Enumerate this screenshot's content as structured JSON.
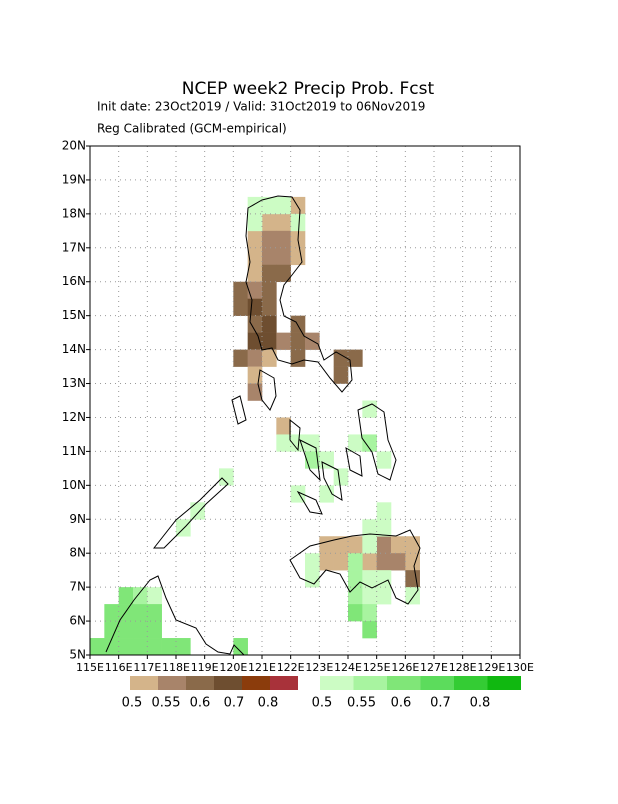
{
  "chart_data": {
    "type": "map",
    "title": "NCEP week2 Precip Prob. Fcst",
    "subtitle": "Init date: 23Oct2019 / Valid: 31Oct2019 to 06Nov2019",
    "note": "Reg Calibrated (GCM-empirical)",
    "xlim": [
      115,
      130
    ],
    "ylim": [
      5,
      20
    ],
    "grid": true,
    "xticks": [
      {
        "value": 115,
        "label": "115E"
      },
      {
        "value": 116,
        "label": "116E"
      },
      {
        "value": 117,
        "label": "117E"
      },
      {
        "value": 118,
        "label": "118E"
      },
      {
        "value": 119,
        "label": "119E"
      },
      {
        "value": 120,
        "label": "120E"
      },
      {
        "value": 121,
        "label": "121E"
      },
      {
        "value": 122,
        "label": "122E"
      },
      {
        "value": 123,
        "label": "123E"
      },
      {
        "value": 124,
        "label": "124E"
      },
      {
        "value": 125,
        "label": "125E"
      },
      {
        "value": 126,
        "label": "126E"
      },
      {
        "value": 127,
        "label": "127E"
      },
      {
        "value": 128,
        "label": "128E"
      },
      {
        "value": 129,
        "label": "129E"
      },
      {
        "value": 130,
        "label": "130E"
      }
    ],
    "yticks": [
      {
        "value": 5,
        "label": "5N"
      },
      {
        "value": 6,
        "label": "6N"
      },
      {
        "value": 7,
        "label": "7N"
      },
      {
        "value": 8,
        "label": "8N"
      },
      {
        "value": 9,
        "label": "9N"
      },
      {
        "value": 10,
        "label": "10N"
      },
      {
        "value": 11,
        "label": "11N"
      },
      {
        "value": 12,
        "label": "12N"
      },
      {
        "value": 13,
        "label": "13N"
      },
      {
        "value": 14,
        "label": "14N"
      },
      {
        "value": 15,
        "label": "15N"
      },
      {
        "value": 16,
        "label": "16N"
      },
      {
        "value": 17,
        "label": "17N"
      },
      {
        "value": 18,
        "label": "18N"
      },
      {
        "value": 19,
        "label": "19N"
      },
      {
        "value": 20,
        "label": "20N"
      }
    ],
    "dry_scale": {
      "colors": [
        "#d4b48a",
        "#a8846a",
        "#8a6a4a",
        "#6e4e30",
        "#8b3c0c",
        "#a8323a"
      ],
      "labels": [
        0.5,
        0.55,
        0.6,
        0.7,
        0.8
      ]
    },
    "wet_scale": {
      "colors": [
        "#ccfcc4",
        "#a8f4a0",
        "#80e678",
        "#5cdc5c",
        "#34cc34",
        "#10b810"
      ],
      "labels": [
        0.5,
        0.55,
        0.6,
        0.7,
        0.8
      ]
    },
    "dry_cells": [
      [
        122,
        18,
        0.5
      ],
      [
        121,
        17.5,
        0.5
      ],
      [
        121.5,
        17.5,
        0.5
      ],
      [
        120.5,
        17,
        0.5
      ],
      [
        121,
        17,
        0.55
      ],
      [
        121.5,
        17,
        0.55
      ],
      [
        122,
        17,
        0.5
      ],
      [
        120.5,
        16.5,
        0.5
      ],
      [
        121,
        16.5,
        0.55
      ],
      [
        121.5,
        16.5,
        0.55
      ],
      [
        122,
        16.5,
        0.5
      ],
      [
        120.5,
        16,
        0.5
      ],
      [
        121,
        16,
        0.6
      ],
      [
        121.5,
        16,
        0.6
      ],
      [
        120,
        15.5,
        0.6
      ],
      [
        120.5,
        15.5,
        0.55
      ],
      [
        121,
        15.5,
        0.6
      ],
      [
        120,
        15,
        0.6
      ],
      [
        120.5,
        15,
        0.7
      ],
      [
        121,
        15,
        0.6
      ],
      [
        120.5,
        14.5,
        0.6
      ],
      [
        121,
        14.5,
        0.7
      ],
      [
        122,
        14.5,
        0.6
      ],
      [
        120.5,
        14,
        0.7
      ],
      [
        121,
        14,
        0.7
      ],
      [
        121.5,
        14,
        0.55
      ],
      [
        122,
        14,
        0.6
      ],
      [
        122.5,
        14,
        0.55
      ],
      [
        120,
        13.5,
        0.6
      ],
      [
        120.5,
        13.5,
        0.55
      ],
      [
        121,
        13.5,
        0.5
      ],
      [
        122,
        13.5,
        0.6
      ],
      [
        123.5,
        13.5,
        0.6
      ],
      [
        124,
        13.5,
        0.6
      ],
      [
        120.5,
        13,
        0.5
      ],
      [
        123.5,
        13,
        0.6
      ],
      [
        120.5,
        12.5,
        0.55
      ],
      [
        121.5,
        11.5,
        0.5
      ],
      [
        123,
        8,
        0.5
      ],
      [
        123.5,
        8,
        0.5
      ],
      [
        124,
        8,
        0.5
      ],
      [
        125,
        8,
        0.55
      ],
      [
        125.5,
        8,
        0.5
      ],
      [
        126,
        8,
        0.5
      ],
      [
        123,
        7.5,
        0.5
      ],
      [
        123.5,
        7.5,
        0.5
      ],
      [
        124.5,
        7.5,
        0.5
      ],
      [
        125,
        7.5,
        0.55
      ],
      [
        125.5,
        7.5,
        0.55
      ],
      [
        126,
        7.5,
        0.5
      ],
      [
        126,
        7,
        0.6
      ]
    ],
    "wet_cells": [
      [
        120.5,
        18,
        0.5
      ],
      [
        121,
        18,
        0.5
      ],
      [
        121.5,
        18,
        0.5
      ],
      [
        120.5,
        17.5,
        0.5
      ],
      [
        122,
        17.5,
        0.5
      ],
      [
        124.5,
        12,
        0.5
      ],
      [
        121.5,
        11,
        0.5
      ],
      [
        122,
        11,
        0.5
      ],
      [
        122.5,
        11,
        0.5
      ],
      [
        124,
        11,
        0.5
      ],
      [
        124.5,
        11,
        0.55
      ],
      [
        125,
        10.5,
        0.5
      ],
      [
        122.5,
        10.5,
        0.55
      ],
      [
        123,
        10.5,
        0.5
      ],
      [
        123.5,
        10,
        0.5
      ],
      [
        119.5,
        10,
        0.5
      ],
      [
        122,
        9.5,
        0.5
      ],
      [
        123,
        9.5,
        0.5
      ],
      [
        118.5,
        9,
        0.5
      ],
      [
        118,
        8.5,
        0.5
      ],
      [
        125,
        9,
        0.5
      ],
      [
        124.5,
        8.5,
        0.5
      ],
      [
        125,
        8.5,
        0.5
      ],
      [
        124.5,
        8,
        0.5
      ],
      [
        122.5,
        7.5,
        0.5
      ],
      [
        124,
        7.5,
        0.55
      ],
      [
        122.5,
        7,
        0.5
      ],
      [
        124,
        7,
        0.55
      ],
      [
        124.5,
        7,
        0.5
      ],
      [
        125,
        7,
        0.5
      ],
      [
        124,
        6.5,
        0.55
      ],
      [
        124.5,
        6.5,
        0.5
      ],
      [
        125,
        6.5,
        0.5
      ],
      [
        126,
        6.5,
        0.5
      ],
      [
        124,
        6,
        0.6
      ],
      [
        124.5,
        6,
        0.55
      ],
      [
        124.5,
        5.5,
        0.6
      ],
      [
        116,
        6.5,
        0.6
      ],
      [
        116.5,
        6.5,
        0.55
      ],
      [
        117,
        6.5,
        0.5
      ],
      [
        115.5,
        6,
        0.6
      ],
      [
        116,
        6,
        0.6
      ],
      [
        116.5,
        6,
        0.6
      ],
      [
        117,
        6,
        0.6
      ],
      [
        115.5,
        5.5,
        0.6
      ],
      [
        116,
        5.5,
        0.6
      ],
      [
        116.5,
        5.5,
        0.6
      ],
      [
        117,
        5.5,
        0.6
      ],
      [
        115,
        5,
        0.6
      ],
      [
        115.5,
        5,
        0.6
      ],
      [
        116,
        5,
        0.6
      ],
      [
        116.5,
        5,
        0.6
      ],
      [
        117,
        5,
        0.6
      ],
      [
        117.5,
        5,
        0.6
      ],
      [
        118,
        5,
        0.6
      ],
      [
        120,
        5,
        0.6
      ]
    ]
  }
}
